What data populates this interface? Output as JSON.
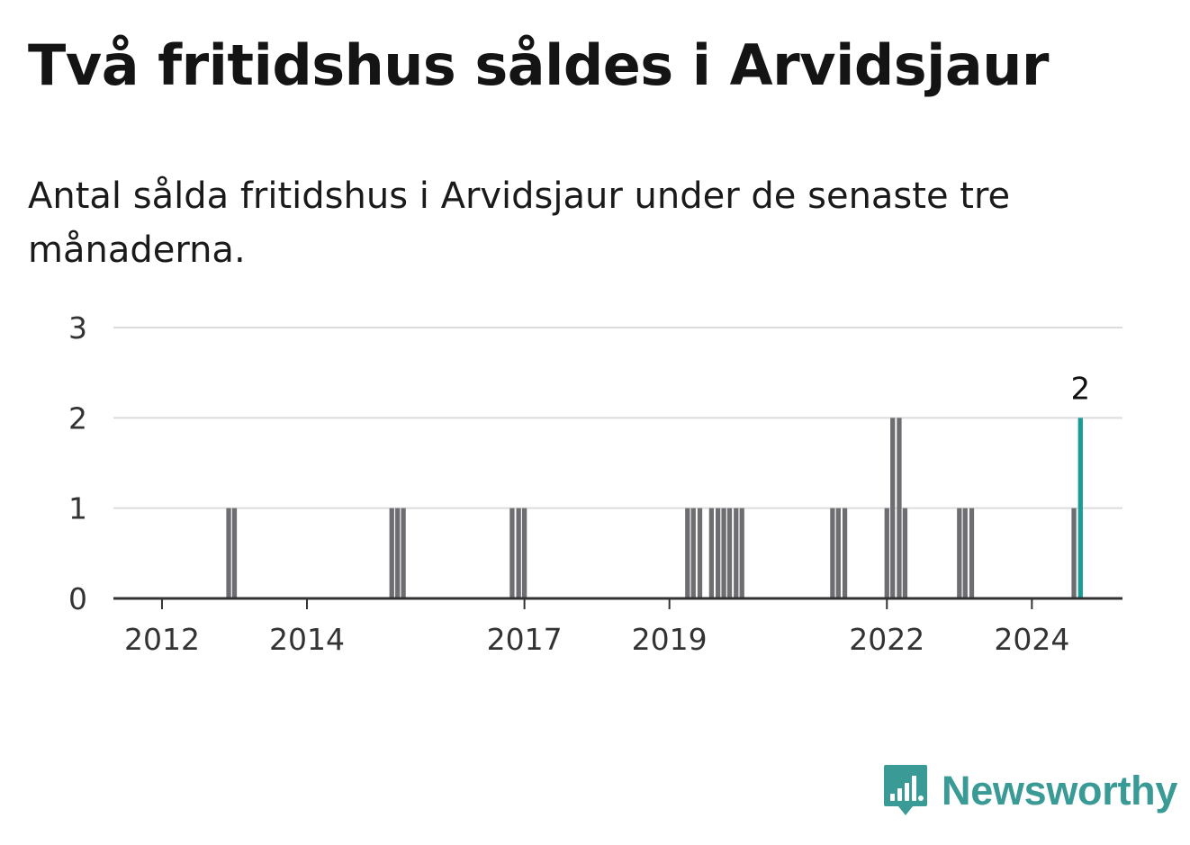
{
  "header": {
    "title": "Två fritidshus såldes i Arvidsjaur",
    "subtitle": "Antal sålda fritidshus i Arvidsjaur under de senaste tre månaderna."
  },
  "brand": {
    "name": "Newsworthy"
  },
  "colors": {
    "bar": "#6e6e72",
    "highlight": "#1a9c96",
    "grid": "#dcdcdc",
    "axis": "#333333",
    "brand": "#3a9a95"
  },
  "chart_data": {
    "type": "bar",
    "title": "Två fritidshus såldes i Arvidsjaur",
    "subtitle": "Antal sålda fritidshus i Arvidsjaur under de senaste tre månaderna.",
    "xlabel": "",
    "ylabel": "",
    "ylim": [
      0,
      3
    ],
    "yticks": [
      0,
      1,
      2,
      3
    ],
    "xlim": [
      2011.33,
      2025.25
    ],
    "xticks": [
      {
        "label": "2012",
        "value": 2012.0
      },
      {
        "label": "2014",
        "value": 2014.0
      },
      {
        "label": "2017",
        "value": 2017.0
      },
      {
        "label": "2019",
        "value": 2019.0
      },
      {
        "label": "2022",
        "value": 2022.0
      },
      {
        "label": "2024",
        "value": 2024.0
      }
    ],
    "grid": true,
    "bar_width_years": 0.083,
    "series": [
      {
        "name": "Sålda fritidshus",
        "points": [
          {
            "x": 2012.92,
            "y": 1
          },
          {
            "x": 2013.0,
            "y": 1
          },
          {
            "x": 2015.17,
            "y": 1
          },
          {
            "x": 2015.25,
            "y": 1
          },
          {
            "x": 2015.33,
            "y": 1
          },
          {
            "x": 2016.83,
            "y": 1
          },
          {
            "x": 2016.92,
            "y": 1
          },
          {
            "x": 2017.0,
            "y": 1
          },
          {
            "x": 2019.25,
            "y": 1
          },
          {
            "x": 2019.33,
            "y": 1
          },
          {
            "x": 2019.42,
            "y": 1
          },
          {
            "x": 2019.58,
            "y": 1
          },
          {
            "x": 2019.67,
            "y": 1
          },
          {
            "x": 2019.75,
            "y": 1
          },
          {
            "x": 2019.83,
            "y": 1
          },
          {
            "x": 2019.92,
            "y": 1
          },
          {
            "x": 2020.0,
            "y": 1
          },
          {
            "x": 2021.25,
            "y": 1
          },
          {
            "x": 2021.33,
            "y": 1
          },
          {
            "x": 2021.42,
            "y": 1
          },
          {
            "x": 2022.0,
            "y": 1
          },
          {
            "x": 2022.08,
            "y": 2
          },
          {
            "x": 2022.17,
            "y": 2
          },
          {
            "x": 2022.25,
            "y": 1
          },
          {
            "x": 2023.0,
            "y": 1
          },
          {
            "x": 2023.08,
            "y": 1
          },
          {
            "x": 2023.17,
            "y": 1
          },
          {
            "x": 2024.58,
            "y": 1
          },
          {
            "x": 2024.67,
            "y": 2,
            "highlight": true,
            "label": "2"
          }
        ]
      }
    ]
  }
}
